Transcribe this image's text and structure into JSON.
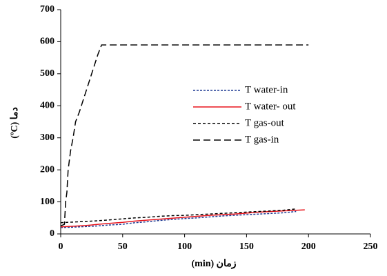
{
  "chart_data": {
    "type": "line",
    "xlabel": "(min) زمان",
    "ylabel": "(ºC) دما",
    "xlim": [
      0,
      250
    ],
    "xticks": [
      0,
      50,
      100,
      150,
      200,
      250
    ],
    "ylim": [
      0,
      700
    ],
    "yticks": [
      0,
      100,
      200,
      300,
      400,
      500,
      600,
      700
    ],
    "grid": false,
    "legend": "center",
    "series": [
      {
        "name": "T water-in",
        "color": "#1f3a93",
        "dash": "3,2",
        "x": [
          0,
          10,
          20,
          30,
          40,
          50,
          60,
          70,
          80,
          90,
          100,
          110,
          120,
          130,
          140,
          150,
          160,
          170,
          180,
          190
        ],
        "values": [
          20,
          21,
          23,
          25,
          28,
          30,
          35,
          38,
          42,
          45,
          48,
          50,
          53,
          56,
          58,
          60,
          62,
          64,
          66,
          70
        ]
      },
      {
        "name": "T water- out",
        "color": "#e8141b",
        "dash": "none",
        "x": [
          0,
          10,
          20,
          30,
          40,
          50,
          60,
          70,
          80,
          90,
          100,
          110,
          120,
          130,
          140,
          150,
          160,
          170,
          180,
          197
        ],
        "values": [
          22,
          24,
          26,
          30,
          33,
          36,
          40,
          43,
          46,
          49,
          52,
          55,
          58,
          60,
          62,
          65,
          68,
          70,
          72,
          75
        ]
      },
      {
        "name": "T gas-out",
        "color": "#000000",
        "dash": "4,3",
        "x": [
          0,
          10,
          20,
          30,
          40,
          50,
          60,
          70,
          80,
          90,
          100,
          110,
          120,
          130,
          140,
          150,
          160,
          170,
          180,
          190
        ],
        "values": [
          35,
          37,
          39,
          41,
          44,
          47,
          50,
          52,
          55,
          57,
          58,
          60,
          62,
          64,
          66,
          68,
          70,
          72,
          74,
          78
        ]
      },
      {
        "name": "T gas-in",
        "color": "#000000",
        "dash": "10,5",
        "x": [
          0,
          3,
          4,
          5,
          6,
          8,
          10,
          12,
          15,
          20,
          25,
          30,
          32,
          33,
          35,
          200
        ],
        "values": [
          25,
          30,
          100,
          130,
          200,
          260,
          300,
          350,
          380,
          440,
          500,
          560,
          580,
          590,
          590,
          590
        ]
      }
    ]
  }
}
